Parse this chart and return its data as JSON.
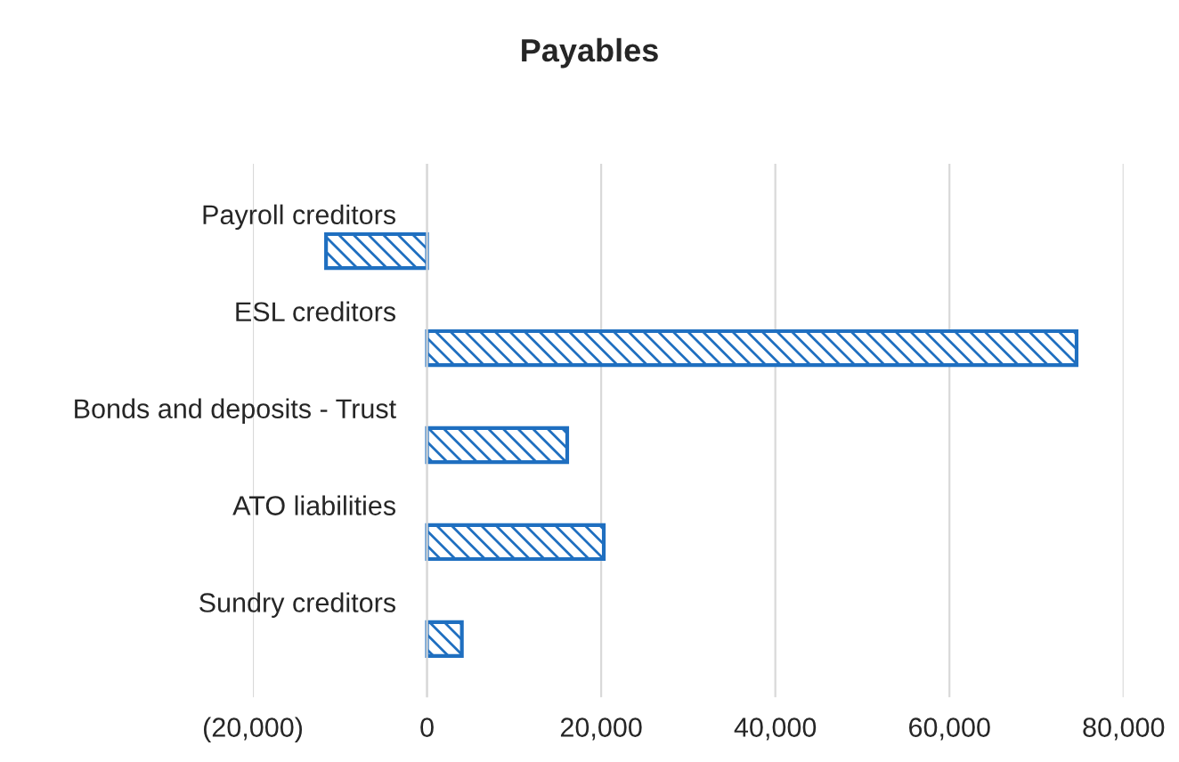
{
  "chart_data": {
    "type": "bar",
    "orientation": "horizontal",
    "title": "Payables",
    "categories": [
      "Payroll creditors",
      "ESL creditors",
      "Bonds and deposits - Trust",
      "ATO liabilities",
      "Sundry creditors"
    ],
    "values": [
      -11600,
      74600,
      16100,
      20300,
      4000
    ],
    "color": "#1f6fc0",
    "xlim": [
      -20000,
      80000
    ],
    "xticks": [
      {
        "value": -20000,
        "label": "(20,000)"
      },
      0,
      {
        "value": 20000,
        "label": "20,000"
      },
      {
        "value": 40000,
        "label": "40,000"
      },
      {
        "value": 60000,
        "label": "60,000"
      },
      {
        "value": 80000,
        "label": "80,000"
      }
    ],
    "grid": "x"
  }
}
